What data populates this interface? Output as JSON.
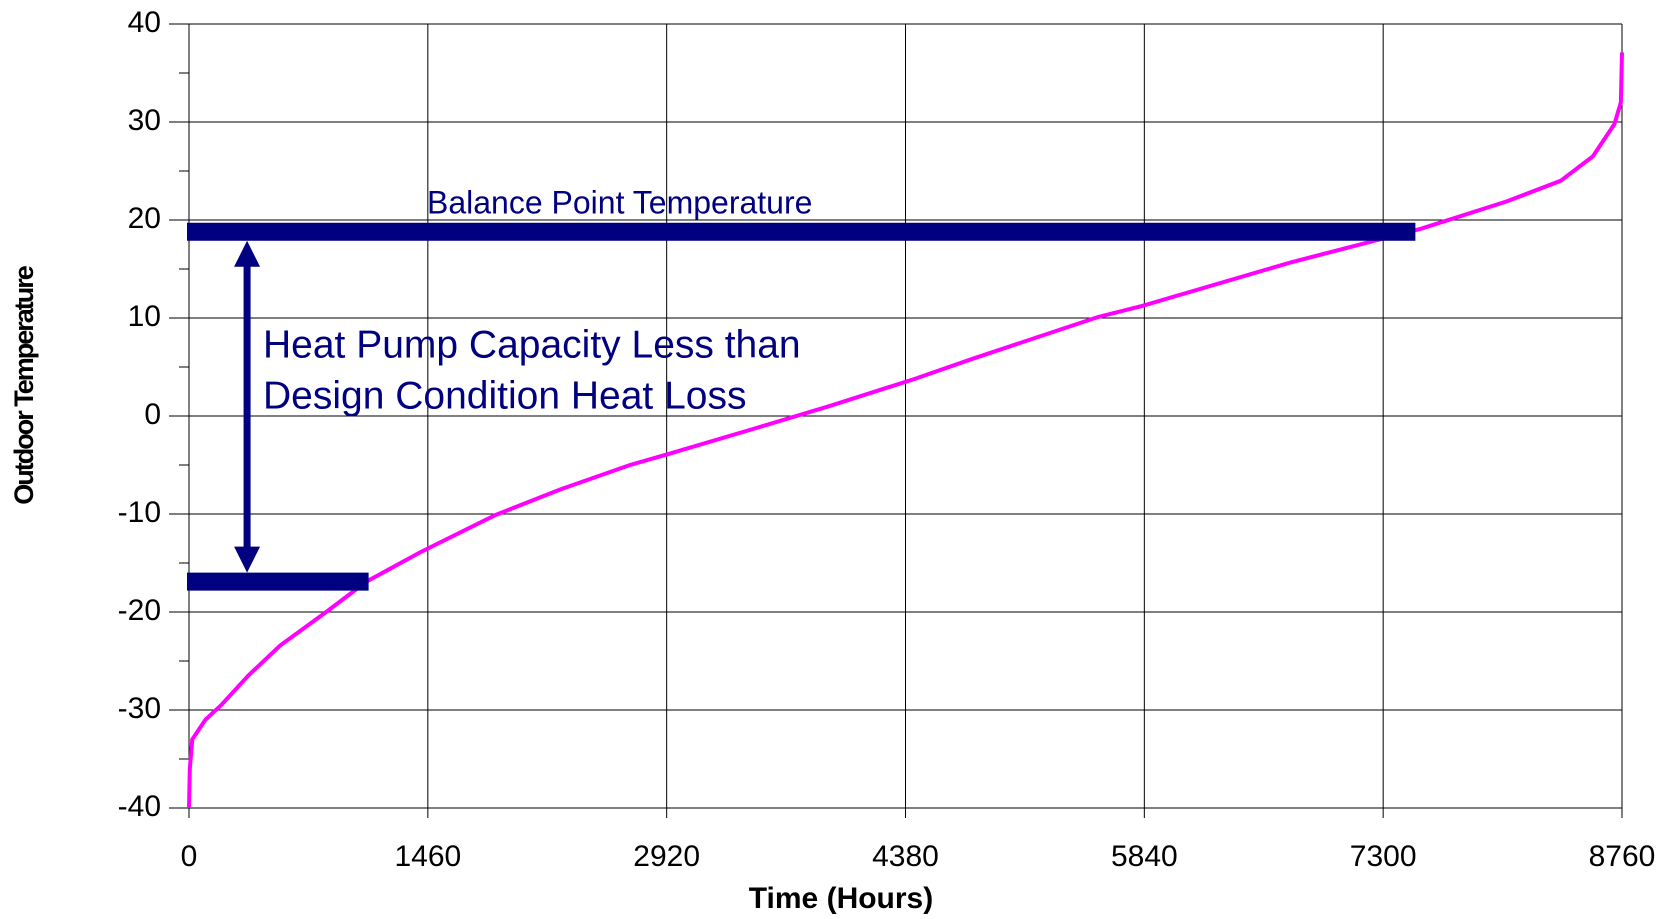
{
  "chart_data": {
    "type": "line",
    "xlabel": "Time (Hours)",
    "ylabel": "Outdoor Temperature",
    "x": [
      0,
      5,
      20,
      100,
      197,
      362,
      559,
      822,
      1085,
      1414,
      1874,
      2269,
      2696,
      2927,
      3453,
      3913,
      4439,
      4801,
      5557,
      5820,
      6741,
      7530,
      8056,
      8385,
      8582,
      8714,
      8753,
      8760
    ],
    "series": [
      {
        "name": "Outdoor Temperature",
        "color": "#ff00ff",
        "values": [
          -40,
          -36,
          -33,
          -31,
          -29.5,
          -26.5,
          -23.4,
          -20.2,
          -16.9,
          -13.9,
          -10.1,
          -7.5,
          -5,
          -3.9,
          -1.3,
          1,
          3.8,
          5.9,
          10.1,
          11.2,
          15.7,
          19.1,
          21.9,
          24,
          26.5,
          29.8,
          32,
          37.1
        ]
      }
    ],
    "xlim": [
      0,
      8760
    ],
    "xticks": [
      0,
      1460,
      2920,
      4380,
      5840,
      7300,
      8760
    ],
    "ylim": [
      -40,
      40
    ],
    "yticks": [
      -40,
      -30,
      -20,
      -10,
      0,
      10,
      20,
      30,
      40
    ],
    "yticks_minor": [
      -35,
      -25,
      -15,
      -5,
      5,
      15,
      25,
      35
    ],
    "grid": true,
    "annotation_color": "#000080",
    "bars": [
      {
        "y": 18.8,
        "x": [
          0,
          7497
        ]
      },
      {
        "y": -16.9,
        "x": [
          0,
          1098
        ]
      }
    ],
    "arrow": {
      "x": 355,
      "y": [
        18.8,
        -16.9
      ]
    },
    "annotations": [
      "Balance Point Temperature",
      "Heat Pump Capacity Less than",
      "Design Condition Heat Loss"
    ]
  }
}
